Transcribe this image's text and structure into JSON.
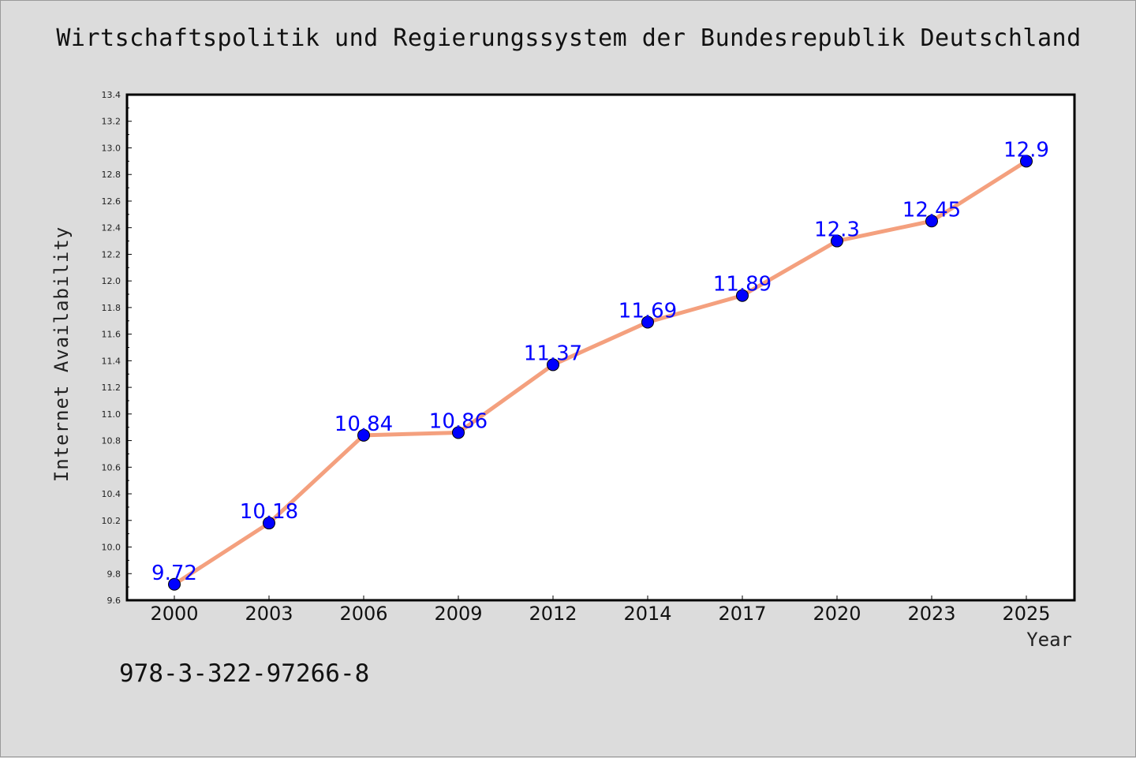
{
  "title": "Wirtschaftspolitik und Regierungssystem der Bundesrepublik Deutschland",
  "isbn": "978-3-322-97266-8",
  "colors": {
    "background": "#dcdcdc",
    "plot_background": "#ffffff",
    "line": "#f4a07e",
    "marker": "#0000ff",
    "data_label": "#0000ff"
  },
  "chart_data": {
    "type": "line",
    "xlabel": "Year",
    "ylabel": "Internet Availability",
    "categories": [
      "2000",
      "2003",
      "2006",
      "2009",
      "2012",
      "2014",
      "2017",
      "2020",
      "2023",
      "2025"
    ],
    "series": [
      {
        "values": [
          9.72,
          10.18,
          10.84,
          10.86,
          11.37,
          11.69,
          11.89,
          12.3,
          12.45,
          12.9
        ],
        "data_labels": [
          "9.72",
          "10.18",
          "10.84",
          "10.86",
          "11.37",
          "11.69",
          "11.89",
          "12.3",
          "12.45",
          "12.9"
        ]
      }
    ],
    "ylim": [
      9.6,
      13.4
    ],
    "yticks": [
      "9.6",
      "9.8",
      "10.0",
      "10.2",
      "10.4",
      "10.6",
      "10.8",
      "11.0",
      "11.2",
      "11.4",
      "11.6",
      "11.8",
      "12.0",
      "12.2",
      "12.4",
      "12.6",
      "12.8",
      "13.0",
      "13.2",
      "13.4"
    ],
    "grid": false,
    "legend": "none"
  }
}
